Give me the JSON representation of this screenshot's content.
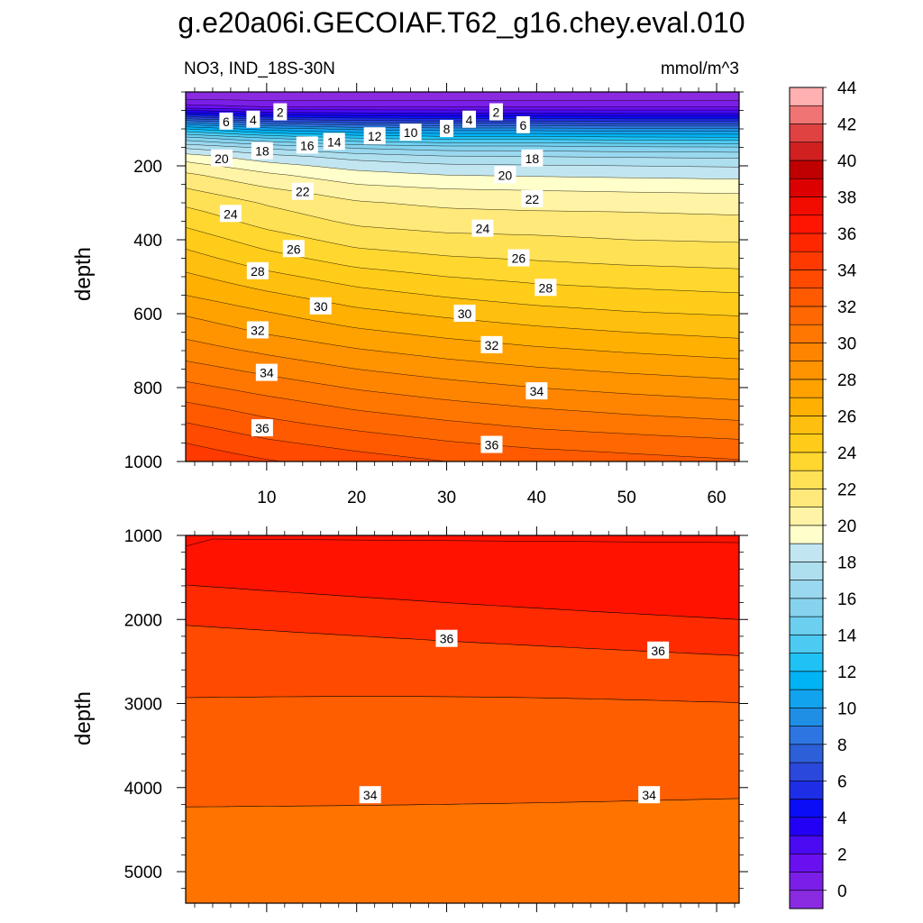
{
  "chart_data": {
    "type": "contour",
    "title": "g.e20a06i.GECOIAF.T62_g16.chey.eval.010",
    "left_subtitle": "NO3, IND_18S-30N",
    "right_subtitle": "mmol/m^3",
    "colorbar": {
      "levels": [
        0,
        2,
        4,
        6,
        8,
        10,
        12,
        14,
        16,
        18,
        20,
        22,
        24,
        26,
        28,
        30,
        32,
        34,
        36,
        38,
        40,
        42,
        44
      ],
      "labels": [
        "0",
        "2",
        "4",
        "6",
        "8",
        "10",
        "12",
        "14",
        "16",
        "18",
        "20",
        "22",
        "24",
        "26",
        "28",
        "30",
        "32",
        "34",
        "36",
        "38",
        "40",
        "42",
        "44"
      ],
      "colors": [
        "#8a2be2",
        "#7b1fe8",
        "#6a0fef",
        "#4a0af2",
        "#2300f5",
        "#0b0df6",
        "#1e2ee6",
        "#2a48dc",
        "#2c5fd8",
        "#2d76e2",
        "#1f8fe6",
        "#12a3ef",
        "#00b3f5",
        "#1ec2f5",
        "#4ccaf2",
        "#6ccff0",
        "#86d3ef",
        "#99d8ef",
        "#aedfef",
        "#c2e6f1",
        "#ffffcb",
        "#fff3a5",
        "#ffe97a",
        "#ffe156",
        "#ffd72f",
        "#ffcc19",
        "#ffbf0e",
        "#ffb000",
        "#ffa200",
        "#ff9300",
        "#ff8500",
        "#ff7700",
        "#ff6800",
        "#ff5a00",
        "#ff4a00",
        "#ff3a00",
        "#ff2700",
        "#ff1500",
        "#f20c00",
        "#dd0000",
        "#c00000",
        "#d02020",
        "#e04242",
        "#f07474",
        "#ffb0b0"
      ]
    },
    "panels": [
      {
        "name": "upper",
        "x_range": [
          1,
          62.5
        ],
        "y_range": [
          0,
          1000
        ],
        "y_reversed": true,
        "ylabel": "depth",
        "x_ticks": [
          10,
          20,
          30,
          40,
          50,
          60
        ],
        "x_tick_labels": [
          "10",
          "20",
          "30",
          "40",
          "50",
          "60"
        ],
        "y_ticks": [
          200,
          400,
          600,
          800,
          1000
        ],
        "y_tick_labels": [
          "200",
          "400",
          "600",
          "800",
          "1000"
        ],
        "x_minor_step": 2,
        "y_minor_step": 50,
        "contour_interval": 1,
        "depth_grid": [
          0,
          20,
          40,
          60,
          80,
          100,
          125,
          150,
          175,
          200,
          225,
          250,
          275,
          300,
          350,
          400,
          450,
          500,
          550,
          600,
          650,
          700,
          750,
          800,
          850,
          900,
          950,
          1000
        ],
        "profile_x": [
          1,
          10,
          20,
          30,
          40,
          50,
          62.5
        ],
        "profiles": [
          [
            0,
            1.0,
            2.4,
            5.6,
            9.5,
            13.0,
            16.4,
            18.8,
            20.5,
            21.4,
            22.2,
            22.8,
            23.3,
            23.8,
            24.7,
            25.6,
            26.4,
            27.2,
            28.0,
            28.9,
            29.7,
            30.5,
            31.4,
            32.3,
            33.2,
            34.1,
            35.0,
            35.8,
            36.4
          ],
          [
            0,
            0.8,
            2.0,
            4.6,
            8.0,
            11.5,
            15.0,
            17.8,
            19.4,
            20.4,
            21.2,
            21.8,
            22.4,
            22.9,
            23.6,
            24.5,
            25.4,
            26.3,
            27.2,
            28.1,
            28.9,
            29.8,
            30.7,
            31.6,
            32.5,
            33.3,
            34.2,
            35.1,
            35.9
          ],
          [
            0,
            0.8,
            2.0,
            4.4,
            7.4,
            10.7,
            14.0,
            16.8,
            18.6,
            19.6,
            20.4,
            21.0,
            21.6,
            22.1,
            22.8,
            23.6,
            24.5,
            25.5,
            26.4,
            27.3,
            28.2,
            29.1,
            30.0,
            30.9,
            31.8,
            32.7,
            33.6,
            34.5,
            35.4
          ],
          [
            0,
            0.8,
            2.0,
            4.3,
            7.2,
            10.4,
            13.6,
            16.4,
            18.1,
            19.2,
            20.0,
            20.7,
            21.3,
            21.8,
            22.5,
            23.3,
            24.1,
            25.0,
            25.9,
            26.8,
            27.7,
            28.6,
            29.5,
            30.4,
            31.3,
            32.2,
            33.1,
            34.0,
            34.9
          ],
          [
            0,
            0.8,
            2.0,
            4.3,
            7.2,
            10.4,
            13.6,
            16.4,
            18.0,
            19.1,
            19.9,
            20.6,
            21.2,
            21.7,
            22.4,
            23.2,
            23.9,
            24.7,
            25.5,
            26.4,
            27.3,
            28.2,
            29.1,
            30.0,
            30.9,
            31.8,
            32.7,
            33.7,
            34.6
          ],
          [
            0,
            0.8,
            2.0,
            4.2,
            7.0,
            10.2,
            13.4,
            16.2,
            17.9,
            19.0,
            19.8,
            20.5,
            21.1,
            21.7,
            22.3,
            23.0,
            23.7,
            24.5,
            25.3,
            26.1,
            27.0,
            27.9,
            28.8,
            29.7,
            30.6,
            31.5,
            32.5,
            33.4,
            34.3
          ],
          [
            0,
            0.8,
            2.0,
            4.2,
            7.0,
            10.2,
            13.3,
            16.1,
            17.8,
            18.9,
            19.7,
            20.4,
            21.0,
            21.6,
            22.2,
            22.9,
            23.6,
            24.3,
            25.1,
            25.9,
            26.7,
            27.6,
            28.5,
            29.4,
            30.3,
            31.2,
            32.2,
            33.1,
            34.0
          ]
        ],
        "contour_labels": [
          {
            "x": 5.5,
            "y": 80,
            "text": "6"
          },
          {
            "x": 8.5,
            "y": 75,
            "text": "4"
          },
          {
            "x": 11.5,
            "y": 55,
            "text": "2"
          },
          {
            "x": 35.5,
            "y": 55,
            "text": "2"
          },
          {
            "x": 32.5,
            "y": 75,
            "text": "4"
          },
          {
            "x": 38.5,
            "y": 90,
            "text": "6"
          },
          {
            "x": 30,
            "y": 100,
            "text": "8"
          },
          {
            "x": 26,
            "y": 110,
            "text": "10"
          },
          {
            "x": 22,
            "y": 120,
            "text": "12"
          },
          {
            "x": 17.5,
            "y": 135,
            "text": "14"
          },
          {
            "x": 14.5,
            "y": 145,
            "text": "16"
          },
          {
            "x": 9.5,
            "y": 160,
            "text": "18"
          },
          {
            "x": 5,
            "y": 180,
            "text": "20"
          },
          {
            "x": 39.5,
            "y": 180,
            "text": "18"
          },
          {
            "x": 36.5,
            "y": 225,
            "text": "20"
          },
          {
            "x": 14,
            "y": 270,
            "text": "22"
          },
          {
            "x": 39.5,
            "y": 290,
            "text": "22"
          },
          {
            "x": 6,
            "y": 330,
            "text": "24"
          },
          {
            "x": 34,
            "y": 370,
            "text": "24"
          },
          {
            "x": 13,
            "y": 425,
            "text": "26"
          },
          {
            "x": 38,
            "y": 450,
            "text": "26"
          },
          {
            "x": 9,
            "y": 485,
            "text": "28"
          },
          {
            "x": 41,
            "y": 530,
            "text": "28"
          },
          {
            "x": 16,
            "y": 580,
            "text": "30"
          },
          {
            "x": 32,
            "y": 600,
            "text": "30"
          },
          {
            "x": 9,
            "y": 645,
            "text": "32"
          },
          {
            "x": 35,
            "y": 685,
            "text": "32"
          },
          {
            "x": 10,
            "y": 760,
            "text": "34"
          },
          {
            "x": 40,
            "y": 810,
            "text": "34"
          },
          {
            "x": 9.5,
            "y": 910,
            "text": "36"
          },
          {
            "x": 35,
            "y": 955,
            "text": "36"
          }
        ]
      },
      {
        "name": "lower",
        "x_range": [
          1,
          62.5
        ],
        "y_range": [
          1000,
          5375
        ],
        "y_reversed": true,
        "ylabel": "depth",
        "x_ticks": [
          10,
          20,
          30,
          40,
          50,
          60
        ],
        "x_tick_labels": [],
        "y_ticks": [
          1000,
          2000,
          3000,
          4000,
          5000
        ],
        "y_tick_labels": [
          "1000",
          "2000",
          "3000",
          "4000",
          "5000"
        ],
        "x_minor_step": 2,
        "y_minor_step": 200,
        "contour_interval": 1,
        "band_depths_at_x": [
          1,
          62.5
        ],
        "bands": [
          {
            "value": 38.5,
            "color": "#ff1200",
            "from": [
              1000,
              1000
            ],
            "to": [
              1590,
              2000
            ]
          },
          {
            "value": 37.5,
            "color": "#ff2a00",
            "from": [
              1590,
              2000
            ],
            "to": [
              2070,
              2430
            ]
          },
          {
            "value": 36.5,
            "color": "#ff4a00",
            "from": [
              2070,
              2430
            ],
            "to": [
              2930,
              2990
            ]
          },
          {
            "value": 35.5,
            "color": "#ff5e00",
            "from": [
              2930,
              2990
            ],
            "to": [
              4230,
              4130
            ]
          },
          {
            "value": 34.5,
            "color": "#ff7300",
            "from": [
              4230,
              4130
            ],
            "to": [
              5375,
              5375
            ]
          }
        ],
        "contour_labels": [
          {
            "x": 30,
            "y": 2230,
            "text": "36"
          },
          {
            "x": 53.5,
            "y": 2370,
            "text": "36"
          },
          {
            "x": 21.5,
            "y": 4090,
            "text": "34"
          },
          {
            "x": 52.5,
            "y": 4090,
            "text": "34"
          }
        ]
      }
    ]
  }
}
